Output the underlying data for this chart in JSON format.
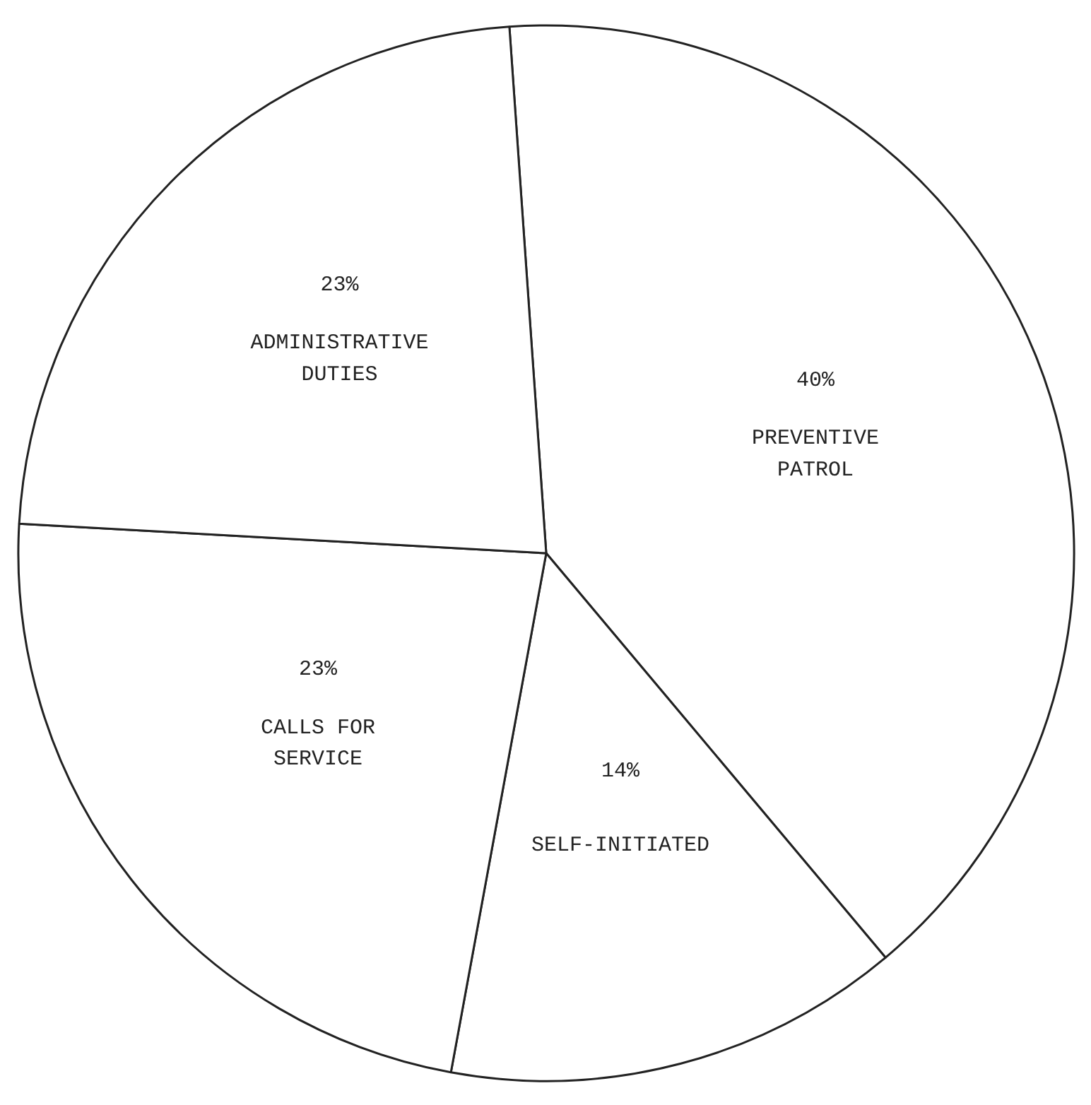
{
  "chart_data": {
    "type": "pie",
    "categories": [
      "PREVENTIVE\nPATROL",
      "SELF-INITIATED",
      "CALLS FOR\nSERVICE",
      "ADMINISTRATIVE\nDUTIES"
    ],
    "values": [
      40,
      14,
      23,
      23
    ],
    "value_labels": [
      "40%",
      "14%",
      "23%",
      "23%"
    ],
    "colors": [
      "#ffffff",
      "#ffffff",
      "#ffffff",
      "#ffffff"
    ]
  }
}
